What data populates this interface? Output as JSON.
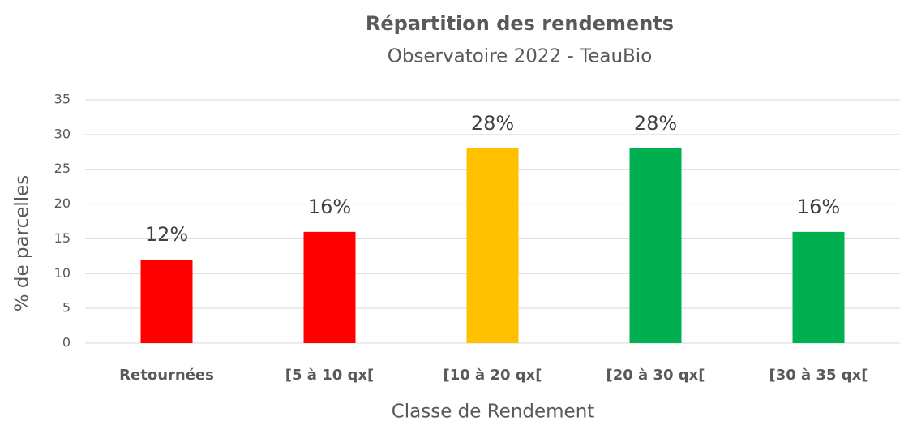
{
  "chart_data": {
    "type": "bar",
    "title": "Répartition des rendements",
    "subtitle": "Observatoire 2022 - TeauBio",
    "x_label": "Classe de Rendement",
    "y_label": "% de parcelles",
    "categories": [
      "Retournées",
      "[5 à 10 qx[",
      "[10 à 20 qx[",
      "[20 à 30 qx[",
      "[30 à 35 qx["
    ],
    "values": [
      12,
      16,
      28,
      28,
      16
    ],
    "value_labels": [
      "12%",
      "16%",
      "28%",
      "28%",
      "16%"
    ],
    "colors": [
      "#ff0000",
      "#ff0000",
      "#ffc000",
      "#00b050",
      "#00b050"
    ],
    "ylim": [
      0,
      35
    ],
    "yticks": [
      0,
      5,
      10,
      15,
      20,
      25,
      30,
      35
    ],
    "grid": true
  }
}
